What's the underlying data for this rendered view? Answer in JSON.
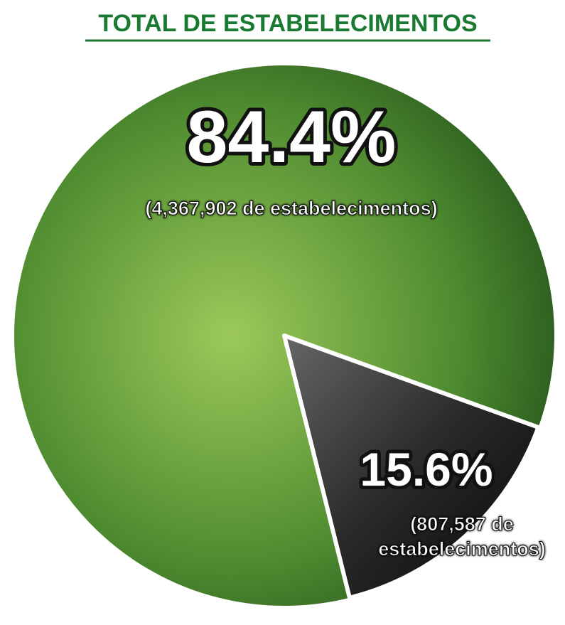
{
  "chart_data": {
    "type": "pie",
    "title": "TOTAL DE ESTABELECIMENTOS",
    "categories": [
      null,
      null
    ],
    "values": [
      84.4,
      15.6
    ],
    "value_labels": [
      "84.4%",
      "15.6%"
    ],
    "detail_labels": [
      "(4,367,902 de estabelecimentos)",
      "(807,587 de estabelecimentos)"
    ],
    "colors": [
      "#3d7a2b",
      "#2a2a2a"
    ]
  }
}
